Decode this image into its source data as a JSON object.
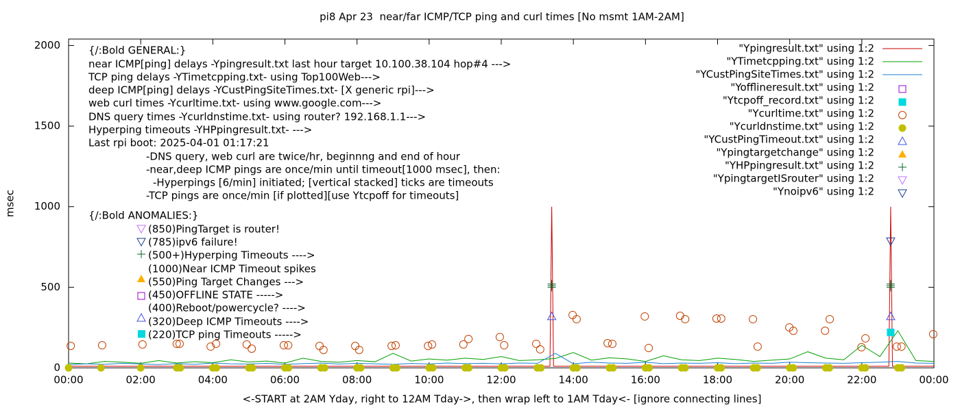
{
  "chart_data": {
    "type": "line",
    "title": "pi8 Apr 23  near/far ICMP/TCP ping and curl times [No msmt 1AM-2AM]",
    "ylabel": "msec",
    "xlabel": "<-START at 2AM Yday, right to 12AM Tday->, then wrap left to 1AM Tday<- [ignore connecting lines]",
    "xlim": [
      0,
      24
    ],
    "ylim": [
      0,
      2040
    ],
    "xticks": [
      {
        "value": 0,
        "label": "00:00"
      },
      {
        "value": 2,
        "label": "02:00"
      },
      {
        "value": 4,
        "label": "04:00"
      },
      {
        "value": 6,
        "label": "06:00"
      },
      {
        "value": 8,
        "label": "08:00"
      },
      {
        "value": 10,
        "label": "10:00"
      },
      {
        "value": 12,
        "label": "12:00"
      },
      {
        "value": 14,
        "label": "14:00"
      },
      {
        "value": 16,
        "label": "16:00"
      },
      {
        "value": 18,
        "label": "18:00"
      },
      {
        "value": 20,
        "label": "20:00"
      },
      {
        "value": 22,
        "label": "22:00"
      },
      {
        "value": 24,
        "label": "00:00"
      }
    ],
    "yticks": [
      0,
      500,
      1000,
      1500,
      2000
    ],
    "grid": false,
    "legend": "top-right",
    "annotations": [
      "{/:Bold GENERAL:}",
      "near ICMP[ping] delays -Ypingresult.txt last hour target 10.100.38.104 hop#4 --->",
      "TCP ping delays -YTimetcpping.txt- using Top100Web--->",
      "deep ICMP[ping] delays -YCustPingSiteTimes.txt- [X generic rpi]--->",
      "web curl times -Ycurltime.txt- using www.google.com--->",
      "DNS query times -Ycurldnstime.txt- using router? 192.168.1.1--->",
      "Hyperping timeouts -YHPpingresult.txt- --->",
      "Last rpi boot: 2025-04-01 01:17:21",
      "-DNS query, web curl are twice/hr, beginnng and end of hour",
      "-near,deep ICMP pings are once/min until timeout[1000 msec], then:",
      "-Hyperpings [6/min] initiated; [vertical stacked] ticks are timeouts",
      "-TCP pings are once/min [if plotted][use Ytcpoff for timeouts]",
      "{/:Bold ANOMALIES:}",
      "(850)PingTarget is router!",
      "(785)ipv6 failure!",
      "(500+)Hyperping Timeouts ---->",
      "(1000)Near ICMP Timeout spikes",
      "(550)Ping Target Changes --->",
      "(450)OFFLINE STATE ----->",
      "(400)Reboot/powercycle? ---->",
      "(320)Deep ICMP Timeouts ---->",
      "(220)TCP ping Timeouts ----->"
    ],
    "series": [
      {
        "name": "\"Ypingresult.txt\" using 1:2",
        "color": "#cc0000",
        "marker": "line",
        "x": [
          0,
          13.35,
          13.4,
          13.45,
          22.75,
          22.8,
          22.85,
          24
        ],
        "values": [
          10,
          10,
          1000,
          10,
          10,
          1000,
          10,
          10
        ]
      },
      {
        "name": "\"YTimetcpping.txt\" using 1:2",
        "color": "#00a000",
        "marker": "line",
        "x": [
          0,
          0.5,
          1,
          1.5,
          2,
          2.5,
          3,
          3.5,
          4,
          4.5,
          5,
          5.5,
          6,
          6.5,
          7,
          7.5,
          8,
          8.5,
          9,
          9.5,
          10,
          10.5,
          11,
          11.5,
          12,
          12.5,
          13,
          13.5,
          14,
          14.5,
          15,
          15.5,
          16,
          16.5,
          17,
          17.5,
          18,
          18.5,
          19,
          19.5,
          20,
          20.5,
          21,
          21.5,
          22,
          22.5,
          23,
          23.5,
          24
        ],
        "values": [
          30,
          25,
          40,
          35,
          28,
          45,
          30,
          38,
          32,
          50,
          36,
          42,
          30,
          60,
          40,
          35,
          45,
          38,
          90,
          42,
          55,
          48,
          60,
          52,
          70,
          45,
          50,
          58,
          95,
          48,
          62,
          55,
          40,
          75,
          50,
          45,
          60,
          52,
          40,
          48,
          55,
          100,
          60,
          50,
          140,
          70,
          230,
          45,
          40
        ]
      },
      {
        "name": "\"YCustPingSiteTimes.txt\" using 1:2",
        "color": "#1a7fd0",
        "marker": "line",
        "x": [
          0,
          0.5,
          1,
          1.5,
          2,
          2.5,
          3,
          3.5,
          4,
          4.5,
          5,
          5.5,
          6,
          6.5,
          7,
          7.5,
          8,
          8.5,
          9,
          9.5,
          10,
          10.5,
          11,
          11.5,
          12,
          12.5,
          13,
          13.5,
          14,
          14.5,
          15,
          15.5,
          16,
          16.5,
          17,
          17.5,
          18,
          18.5,
          19,
          19.5,
          20,
          20.5,
          21,
          21.5,
          22,
          22.5,
          23,
          23.5,
          24
        ],
        "values": [
          20,
          25,
          22,
          28,
          24,
          20,
          26,
          22,
          30,
          25,
          24,
          28,
          22,
          26,
          30,
          24,
          28,
          25,
          22,
          27,
          24,
          30,
          26,
          28,
          25,
          30,
          28,
          90,
          25,
          35,
          30,
          28,
          35,
          26,
          30,
          28,
          32,
          26,
          30,
          28,
          35,
          32,
          30,
          28,
          32,
          35,
          40,
          30,
          28
        ]
      },
      {
        "name": "\"Yofflineresult.txt\" using 1:2",
        "color": "#9400d3",
        "marker": "square-open",
        "x": [],
        "values": []
      },
      {
        "name": "\"Ytcpoff_record.txt\" using 1:2",
        "color": "#00d8e0",
        "marker": "square-filled",
        "x": [
          22.8
        ],
        "values": [
          220
        ]
      },
      {
        "name": "\"Ycurltime.txt\" using 1:2",
        "color": "#c04000",
        "marker": "circle-open",
        "x": [
          0.06,
          0.93,
          2.05,
          3.0,
          3.08,
          3.94,
          4.09,
          4.94,
          5.08,
          5.97,
          6.09,
          6.96,
          7.07,
          7.95,
          8.06,
          8.96,
          9.07,
          9.97,
          10.08,
          10.95,
          11.09,
          11.96,
          12.08,
          12.97,
          13.08,
          13.98,
          14.09,
          14.95,
          15.08,
          15.98,
          16.09,
          16.96,
          17.1,
          17.97,
          18.1,
          18.98,
          19.11,
          19.99,
          20.1,
          20.98,
          21.11,
          21.99,
          22.1,
          22.97,
          23.1,
          23.98
        ],
        "values": [
          136,
          140,
          145,
          149,
          149,
          132,
          149,
          145,
          119,
          140,
          140,
          136,
          111,
          136,
          111,
          136,
          140,
          136,
          145,
          145,
          179,
          191,
          140,
          149,
          115,
          328,
          302,
          153,
          149,
          319,
          123,
          323,
          302,
          306,
          306,
          302,
          132,
          251,
          230,
          230,
          302,
          128,
          183,
          132,
          132,
          209
        ]
      },
      {
        "name": "\"Ycurldnstime.txt\" using 1:2",
        "color": "#c0c000",
        "marker": "circle-filled",
        "x": [
          0.0,
          0.9,
          2.0,
          3.0,
          3.1,
          4.0,
          4.1,
          5.0,
          5.1,
          6.0,
          6.1,
          7.0,
          7.1,
          8.0,
          8.1,
          9.0,
          9.1,
          10.0,
          10.1,
          11.0,
          11.1,
          12.0,
          12.1,
          13.0,
          13.1,
          14.0,
          14.1,
          15.0,
          15.1,
          16.0,
          16.1,
          17.0,
          17.1,
          18.0,
          18.1,
          19.0,
          19.1,
          20.0,
          20.1,
          21.0,
          21.1,
          22.0,
          22.1,
          23.0,
          23.1
        ],
        "values": [
          0,
          0,
          0,
          0,
          0,
          0,
          0,
          0,
          0,
          0,
          0,
          0,
          0,
          0,
          0,
          0,
          0,
          0,
          0,
          0,
          0,
          0,
          0,
          0,
          0,
          0,
          0,
          0,
          0,
          0,
          0,
          0,
          0,
          0,
          0,
          0,
          0,
          0,
          0,
          0,
          0,
          0,
          0,
          0,
          0
        ]
      },
      {
        "name": "\"YCustPingTimeout.txt\" using 1:2",
        "color": "#4050e0",
        "marker": "triangle-open",
        "x": [
          13.4,
          22.8
        ],
        "values": [
          320,
          320
        ]
      },
      {
        "name": "\"Ypingtargetchange\" using 1:2",
        "color": "#ffb000",
        "marker": "triangle-filled",
        "x": [],
        "values": []
      },
      {
        "name": "\"YHPpingresult.txt\" using 1:2",
        "color": "#006a2a",
        "marker": "plus",
        "x": [
          13.4,
          13.4,
          13.4,
          22.8,
          22.8,
          22.8
        ],
        "values": [
          500,
          510,
          520,
          500,
          510,
          520
        ]
      },
      {
        "name": "\"YpingtargetISrouter\" using 1:2",
        "color": "#c070ff",
        "marker": "triangle-down-open",
        "x": [],
        "values": []
      },
      {
        "name": "\"Ynoipv6\" using 1:2",
        "color": "#1a3a90",
        "marker": "triangle-down-open",
        "x": [
          22.8
        ],
        "values": [
          785
        ]
      }
    ]
  }
}
